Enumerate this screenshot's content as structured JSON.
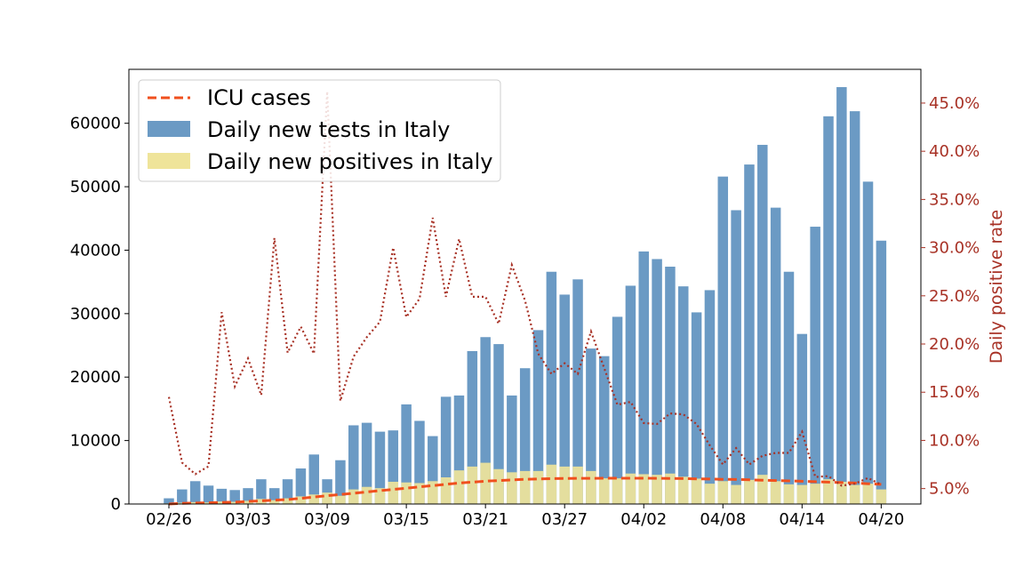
{
  "chart_data": {
    "type": "bar",
    "x_start": "02/26",
    "x_tick_labels": [
      "02/26",
      "03/03",
      "03/09",
      "03/15",
      "03/21",
      "03/27",
      "04/02",
      "04/08",
      "04/14",
      "04/20"
    ],
    "y_ticks": [
      "0",
      "10000",
      "20000",
      "30000",
      "40000",
      "50000",
      "60000"
    ],
    "ylim": [
      0,
      68500
    ],
    "y2label": "Daily positive rate",
    "y2_ticks": [
      "5.0%",
      "10.0%",
      "15.0%",
      "20.0%",
      "25.0%",
      "30.0%",
      "35.0%",
      "40.0%",
      "45.0%"
    ],
    "y2lim": [
      3.4,
      48.5
    ],
    "series": [
      {
        "name": "Daily new tests in Italy",
        "kind": "bar",
        "color": "#6b9ac4",
        "values": [
          900,
          2300,
          3600,
          2900,
          2400,
          2200,
          2500,
          3900,
          2500,
          3900,
          5600,
          7800,
          3900,
          6900,
          12400,
          12800,
          11400,
          11600,
          15700,
          13100,
          10700,
          16900,
          17100,
          24100,
          26300,
          25200,
          17100,
          21400,
          27400,
          36600,
          33000,
          35400,
          24500,
          23300,
          29500,
          34400,
          39800,
          38600,
          37400,
          34300,
          30200,
          33700,
          51600,
          46300,
          53500,
          56600,
          46700,
          36600,
          26800,
          43700,
          61100,
          65700,
          61900,
          50800,
          41500
        ]
      },
      {
        "name": "Daily new positives in Italy",
        "kind": "bar",
        "color": "#efe49a",
        "values": [
          100,
          200,
          300,
          250,
          400,
          350,
          500,
          800,
          600,
          900,
          1200,
          1500,
          1800,
          1300,
          2300,
          2700,
          2500,
          3500,
          3400,
          3300,
          3600,
          4200,
          5300,
          5900,
          6500,
          5500,
          5000,
          5200,
          5200,
          6200,
          5900,
          5900,
          5200,
          4050,
          4050,
          4800,
          4700,
          4600,
          4800,
          4300,
          4000,
          3200,
          3600,
          3000,
          3800,
          4600,
          3600,
          3100,
          3000,
          3200,
          3900,
          3500,
          3000,
          3200,
          2300
        ]
      },
      {
        "name": "ICU cases",
        "kind": "line",
        "style": "dashed",
        "color": "#f0501e",
        "values": [
          0,
          100,
          150,
          200,
          250,
          300,
          400,
          500,
          600,
          700,
          900,
          1100,
          1300,
          1500,
          1700,
          1900,
          2100,
          2300,
          2500,
          2700,
          2900,
          3100,
          3300,
          3450,
          3600,
          3700,
          3800,
          3900,
          3950,
          4000,
          4020,
          4050,
          4050,
          4060,
          4060,
          4060,
          4060,
          4050,
          4030,
          4000,
          3970,
          3930,
          3900,
          3860,
          3810,
          3760,
          3700,
          3640,
          3580,
          3510,
          3450,
          3380,
          3300,
          3200,
          3100
        ]
      },
      {
        "name": "Daily positive rate",
        "kind": "line",
        "axis": "right",
        "style": "dotted",
        "color": "#a83226",
        "values": [
          14.5,
          7.7,
          6.5,
          7.3,
          23.3,
          15.6,
          18.5,
          14.7,
          31.0,
          19.1,
          21.8,
          19.0,
          46.2,
          14.1,
          18.7,
          20.7,
          22.3,
          30.0,
          22.8,
          24.7,
          33.1,
          24.9,
          30.9,
          24.9,
          24.9,
          22.1,
          28.2,
          24.5,
          19.0,
          16.9,
          18.0,
          16.9,
          21.3,
          17.5,
          13.7,
          14.0,
          11.8,
          11.7,
          12.8,
          12.7,
          11.7,
          9.5,
          7.5,
          9.2,
          7.5,
          8.4,
          8.7,
          8.7,
          10.9,
          6.2,
          6.3,
          5.3,
          5.5,
          6.1,
          5.4
        ]
      }
    ],
    "legend": {
      "position": "top-left",
      "entries": [
        "ICU cases",
        "Daily new tests in Italy",
        "Daily new positives in Italy"
      ]
    },
    "grid": false
  }
}
